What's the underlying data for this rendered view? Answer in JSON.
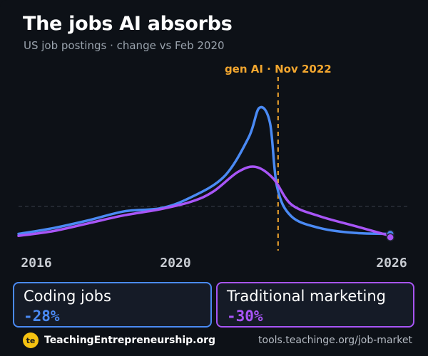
{
  "header": {
    "title": "The jobs AI absorbs",
    "subtitle": "US job postings · change vs Feb 2020"
  },
  "chart_data": {
    "type": "line",
    "x_ticks": [
      "2016",
      "2020",
      "2026"
    ],
    "xlim": [
      2015.5,
      2026.5
    ],
    "ylim": [
      -45,
      130
    ],
    "baseline": 0,
    "annotation": {
      "label": "gen AI · Nov 2022",
      "x": 2022.83
    },
    "series": [
      {
        "name": "Coding jobs",
        "color": "#4a8af4",
        "points": [
          [
            2015.5,
            -28
          ],
          [
            2016.5,
            -22
          ],
          [
            2017.5,
            -14
          ],
          [
            2018.5,
            -5
          ],
          [
            2019.5,
            -2
          ],
          [
            2020.3,
            8
          ],
          [
            2021.3,
            30
          ],
          [
            2022.0,
            70
          ],
          [
            2022.3,
            100
          ],
          [
            2022.6,
            85
          ],
          [
            2022.8,
            20
          ],
          [
            2023.2,
            -10
          ],
          [
            2024.0,
            -22
          ],
          [
            2025.0,
            -27
          ],
          [
            2026.0,
            -28
          ]
        ]
      },
      {
        "name": "Traditional marketing",
        "color": "#a855f7",
        "points": [
          [
            2015.5,
            -30
          ],
          [
            2016.5,
            -25
          ],
          [
            2017.5,
            -17
          ],
          [
            2018.5,
            -9
          ],
          [
            2019.5,
            -3
          ],
          [
            2020.4,
            5
          ],
          [
            2021.0,
            15
          ],
          [
            2021.7,
            35
          ],
          [
            2022.2,
            40
          ],
          [
            2022.7,
            28
          ],
          [
            2023.2,
            2
          ],
          [
            2024.0,
            -10
          ],
          [
            2025.0,
            -20
          ],
          [
            2026.0,
            -30
          ]
        ]
      }
    ]
  },
  "stats": [
    {
      "label": "Coding jobs",
      "value": "-28%",
      "color": "#4a8af4"
    },
    {
      "label": "Traditional marketing",
      "value": "-30%",
      "color": "#a855f7"
    }
  ],
  "footer": {
    "logo_text": "te",
    "brand": "TeachingEntrepreneurship.org",
    "url": "tools.teachinge.org/job-market"
  },
  "colors": {
    "background": "#0d1117",
    "annotation": "#f2a62f",
    "grid": "#3a414b"
  }
}
